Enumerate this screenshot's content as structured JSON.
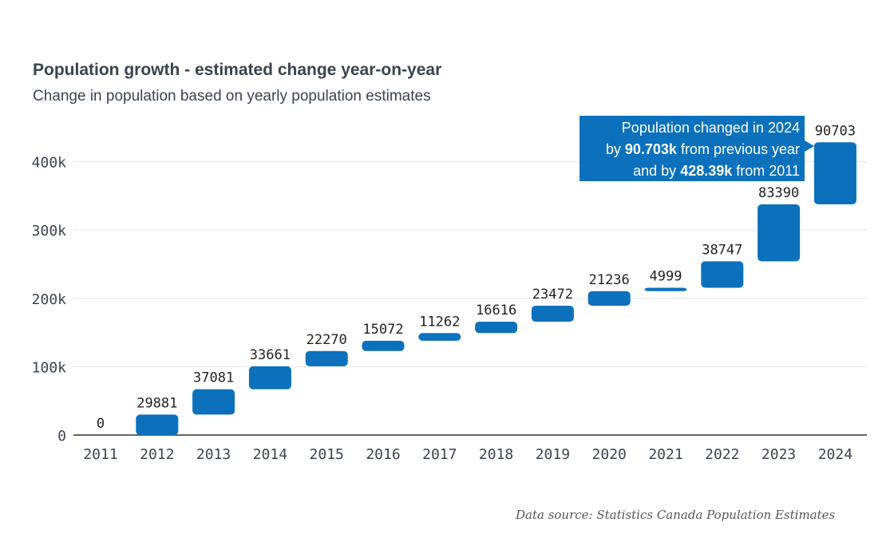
{
  "header": {
    "title": "Population growth - estimated change year-on-year",
    "subtitle": "Change in population based on yearly population estimates"
  },
  "source": "Data source: Statistics Canada Population Estimates",
  "colors": {
    "bar": "#0b71bc",
    "text": "#3b4350",
    "grid": "#e6e6e6",
    "axis": "#333333"
  },
  "tooltip": {
    "line1": "Population changed in 2024",
    "line2_prefix": "by",
    "line2_value": "90.703k",
    "line2_suffix": "from previous year",
    "line3_prefix": "and by",
    "line3_value": "428.39k",
    "line3_suffix": "from 2011"
  },
  "chart_data": {
    "type": "waterfall",
    "title": "Population growth - estimated change year-on-year",
    "subtitle": "Change in population based on yearly population estimates",
    "categories": [
      "2011",
      "2012",
      "2013",
      "2014",
      "2015",
      "2016",
      "2017",
      "2018",
      "2019",
      "2020",
      "2021",
      "2022",
      "2023",
      "2024"
    ],
    "values": [
      0,
      29881,
      37081,
      33661,
      22270,
      15072,
      11262,
      16616,
      23472,
      21236,
      4999,
      38747,
      83390,
      90703
    ],
    "value_labels": [
      "0",
      "29881",
      "37081",
      "33661",
      "22270",
      "15072",
      "11262",
      "16616",
      "23472",
      "21236",
      "4999",
      "38747",
      "83390",
      "90703"
    ],
    "yticks": [
      0,
      100000,
      200000,
      300000,
      400000
    ],
    "ytick_labels": [
      "0",
      "100k",
      "200k",
      "300k",
      "400k"
    ],
    "ylim": [
      0,
      460000
    ],
    "grid": true,
    "xlabel": "",
    "ylabel": ""
  }
}
